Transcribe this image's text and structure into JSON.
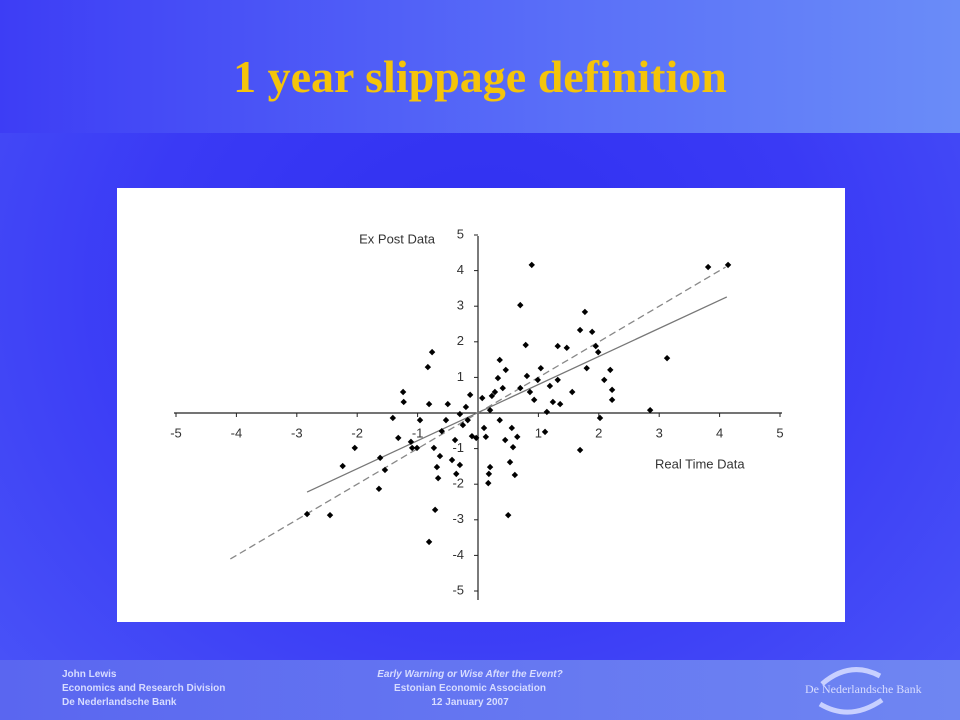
{
  "title": "1 year slippage definition",
  "footer": {
    "left": [
      "John Lewis",
      "Economics and Research Division",
      "De Nederlandsche Bank"
    ],
    "center": [
      "Early Warning or Wise After the Event?",
      "Estonian Economic Association",
      "12 January 2007"
    ],
    "logo": "De Nederlandsche Bank"
  },
  "chart_data": {
    "type": "scatter",
    "y_label": "Ex Post Data",
    "x_label": "Real Time Data",
    "color": "#000000",
    "x": [
      -2.83,
      -2.45,
      -2.24,
      -2.04,
      -1.64,
      -1.62,
      -1.54,
      -1.41,
      -1.32,
      -1.24,
      -1.23,
      -1.09,
      -1.11,
      -1.01,
      -0.96,
      -0.83,
      -0.76,
      -0.81,
      -0.73,
      -0.68,
      -0.66,
      -0.63,
      -0.6,
      -0.53,
      -0.5,
      -0.71,
      -0.81,
      -0.43,
      -0.38,
      -0.36,
      -0.3,
      -0.3,
      -0.25,
      -0.2,
      -0.17,
      -0.13,
      -0.1,
      -0.03,
      0.07,
      0.1,
      0.13,
      0.17,
      0.18,
      0.2,
      0.23,
      0.28,
      0.33,
      0.36,
      0.41,
      0.45,
      0.46,
      0.5,
      0.53,
      0.58,
      0.61,
      0.65,
      0.7,
      0.79,
      0.81,
      0.86,
      0.89,
      0.93,
      0.99,
      1.04,
      1.11,
      1.14,
      1.19,
      1.24,
      1.32,
      1.32,
      1.36,
      1.47,
      1.56,
      1.69,
      1.69,
      1.77,
      1.8,
      1.89,
      1.95,
      1.99,
      2.02,
      2.09,
      2.19,
      2.22,
      2.22,
      2.85,
      3.13,
      3.81,
      4.14,
      0.7,
      0.2,
      0.36,
      0.56
    ],
    "values": [
      -2.84,
      -2.87,
      -1.49,
      -0.98,
      -2.13,
      -1.26,
      -1.6,
      -0.14,
      -0.7,
      0.59,
      0.31,
      -0.98,
      -0.81,
      -0.98,
      -0.2,
      1.29,
      1.71,
      0.25,
      -0.98,
      -1.52,
      -1.83,
      -1.21,
      -0.51,
      -0.2,
      0.25,
      -2.72,
      -3.62,
      -1.32,
      -0.76,
      -1.71,
      -1.46,
      -0.03,
      -0.34,
      0.17,
      -0.2,
      0.51,
      -0.65,
      -0.7,
      0.42,
      -0.42,
      -0.67,
      -1.97,
      -1.71,
      -1.52,
      0.48,
      0.59,
      0.98,
      1.49,
      0.7,
      -0.76,
      1.21,
      -2.87,
      -1.38,
      -0.96,
      -1.74,
      -0.67,
      3.03,
      1.91,
      1.04,
      0.59,
      4.16,
      0.37,
      0.93,
      1.26,
      -0.53,
      0.03,
      0.76,
      0.31,
      1.88,
      0.93,
      0.25,
      1.83,
      0.59,
      -1.04,
      2.33,
      2.84,
      1.26,
      2.28,
      1.88,
      1.71,
      -0.14,
      0.93,
      1.21,
      0.65,
      0.37,
      0.08,
      1.54,
      4.1,
      4.16,
      0.7,
      0.08,
      -0.2,
      -0.42
    ],
    "lines": [
      {
        "x": [
          -4.1,
          4.1
        ],
        "values": [
          -4.1,
          4.1
        ],
        "dash": true,
        "color": "#888888"
      },
      {
        "x": [
          -2.83,
          4.12
        ],
        "values": [
          -2.22,
          3.26
        ],
        "dash": false,
        "color": "#777777"
      }
    ],
    "xlim": [
      -5,
      5
    ],
    "ylim": [
      -5,
      5
    ],
    "xticks": [
      -5,
      -4,
      -3,
      -2,
      -1,
      1,
      2,
      3,
      4,
      5
    ],
    "yticks": [
      5,
      4,
      3,
      2,
      1,
      -1,
      -2,
      -3,
      -4,
      -5
    ]
  }
}
